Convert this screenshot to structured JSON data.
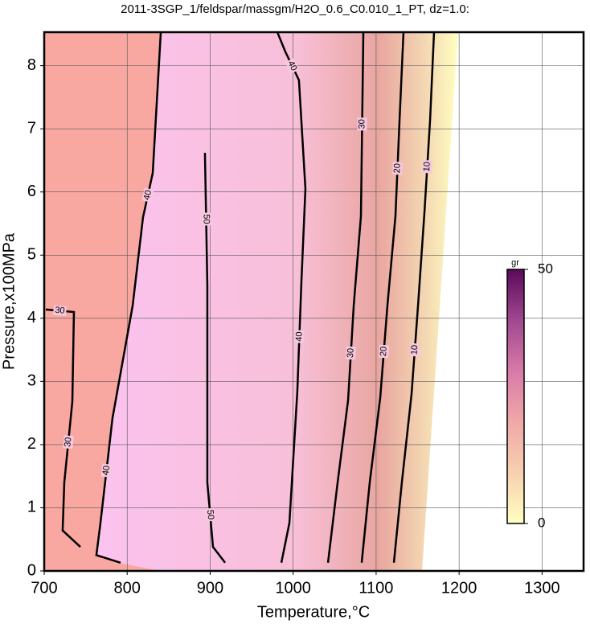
{
  "chart_data": {
    "type": "contour",
    "title": "2011-3SGP_1/feldspar/massgm/H2O_0.6_C0.010_1_PT, dz=1.0:",
    "x_label": "Temperature,°C",
    "y_label": "Pressure,x100MPa",
    "xlim": [
      700,
      1350
    ],
    "ylim": [
      0,
      8.53
    ],
    "xticks": [
      700,
      800,
      900,
      1000,
      1100,
      1200,
      1300
    ],
    "yticks": [
      0,
      1,
      2,
      3,
      4,
      5,
      6,
      7,
      8
    ],
    "grid": true,
    "contours": [
      {
        "level": 10,
        "x": [
          1121.4,
          1131,
          1142.7,
          1150.5,
          1158.2,
          1165,
          1169.8
        ],
        "y": [
          0.13,
          1.4,
          2.8,
          4.2,
          5.67,
          7.13,
          8.53
        ]
      },
      {
        "level": 20,
        "x": [
          1082.6,
          1092.3,
          1105,
          1113.6,
          1123.3,
          1128.2,
          1133
        ],
        "y": [
          0.13,
          1.4,
          2.75,
          4.2,
          5.62,
          7.13,
          8.53
        ]
      },
      {
        "level": 30,
        "x": [
          1042,
          1053.6,
          1066.2,
          1073,
          1081.7,
          1084.6
        ],
        "y": [
          0.13,
          1.4,
          2.7,
          4.2,
          5.62,
          8.53
        ]
      },
      {
        "level": 40,
        "x": [
          985.8,
          995.5,
          1005,
          1010,
          1014.8,
          1007,
          990.6,
          981
        ],
        "y": [
          0.13,
          0.76,
          2.83,
          4.59,
          6.05,
          7.77,
          8.22,
          8.53
        ]
      },
      {
        "level": 50,
        "x": [
          918,
          903.4,
          896.6,
          896.6,
          893.7
        ],
        "y": [
          0.13,
          0.38,
          1.4,
          4.52,
          6.62
        ]
      },
      {
        "level": 40,
        "x": [
          792,
          762.9,
          767.8,
          782.3,
          806.6,
          819.1,
          830.8,
          840.5
        ],
        "y": [
          0.13,
          0.25,
          0.76,
          2.42,
          4.2,
          5.6,
          6.3,
          8.53
        ]
      },
      {
        "level": 30,
        "x": [
          743.6,
          722.2,
          724.2,
          733.9,
          735.8,
          701.9
        ],
        "y": [
          0.38,
          0.64,
          1.4,
          2.68,
          4.1,
          4.14
        ]
      }
    ],
    "colorbar": {
      "label": "gr",
      "lim": [
        0,
        50
      ],
      "ticks": [
        0,
        50
      ],
      "colors": [
        "#ffffc0",
        "#f7d0b0",
        "#f0a8a8",
        "#d87aa8",
        "#a04890",
        "#5a0a5a"
      ]
    }
  }
}
